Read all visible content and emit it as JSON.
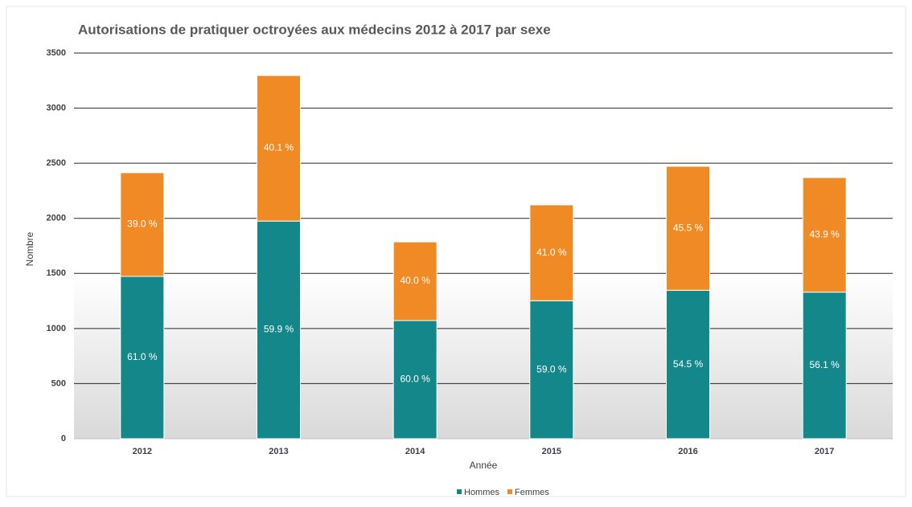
{
  "chart_data": {
    "type": "stacked_bar",
    "title": "Autorisations de pratiquer octroyées aux médecins 2012 à 2017 par sexe",
    "x_label": "Année",
    "y_label": "Nombre",
    "categories": [
      "2012",
      "2013",
      "2014",
      "2015",
      "2016",
      "2017"
    ],
    "series": [
      {
        "name": "Hommes",
        "color": "#13878a",
        "values": [
          1473,
          1975,
          1072,
          1252,
          1347,
          1330
        ],
        "value_labels": [
          "61.0 %",
          "59.9 %",
          "60.0 %",
          "59.0 %",
          "54.5 %",
          "56.1 %"
        ]
      },
      {
        "name": "Femmes",
        "color": "#f08a24",
        "values": [
          941,
          1321,
          714,
          870,
          1125,
          1040
        ],
        "value_labels": [
          "39.0 %",
          "40.1 %",
          "40.0 %",
          "41.0 %",
          "45.5 %",
          "43.9 %"
        ]
      }
    ],
    "ylim": [
      0,
      3500
    ],
    "yticks": [
      0,
      500,
      1000,
      1500,
      2000,
      2500,
      3000,
      3500
    ],
    "grid": true,
    "legend": "bottom"
  }
}
